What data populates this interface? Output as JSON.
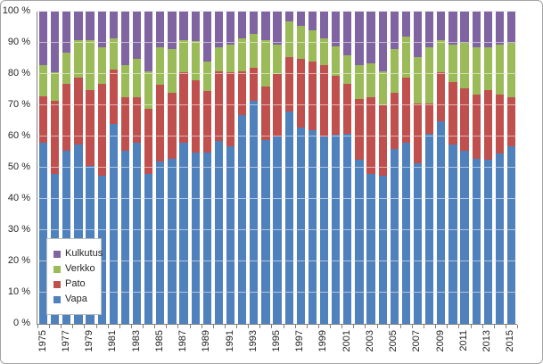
{
  "chart_data": {
    "type": "bar",
    "stacked": true,
    "percent_stacked": true,
    "title": "",
    "xlabel": "",
    "ylabel": "",
    "ylim": [
      0,
      100
    ],
    "grid": true,
    "categories": [
      1975,
      1976,
      1977,
      1978,
      1979,
      1980,
      1981,
      1982,
      1983,
      1984,
      1985,
      1986,
      1987,
      1988,
      1989,
      1990,
      1991,
      1992,
      1993,
      1994,
      1995,
      1996,
      1997,
      1998,
      1999,
      2000,
      2001,
      2002,
      2003,
      2004,
      2005,
      2006,
      2007,
      2008,
      2009,
      2010,
      2011,
      2012,
      2013,
      2014,
      2015
    ],
    "series": [
      {
        "name": "Vapa",
        "color": "#4F81BD",
        "values": [
          58,
          48,
          55.5,
          57.5,
          50.5,
          47.5,
          64,
          55.5,
          58,
          48,
          52,
          53,
          58,
          55,
          55,
          58.5,
          57,
          67,
          71.5,
          59,
          60,
          68,
          63,
          62,
          60,
          60.5,
          61,
          52.5,
          48,
          47.5,
          56,
          58,
          51.5,
          61,
          65,
          57.5,
          55.5,
          53,
          52.5,
          54.5,
          57
        ]
      },
      {
        "name": "Pato",
        "color": "#C0504D",
        "values": [
          15,
          23.5,
          21.5,
          21.5,
          24.5,
          29.5,
          17.5,
          17,
          14.5,
          21,
          24.5,
          21,
          22.5,
          23,
          19.5,
          22.5,
          23.5,
          14,
          10.5,
          17,
          20,
          17.5,
          22,
          22,
          23,
          19,
          16,
          19.5,
          24.5,
          22.5,
          18,
          21,
          19,
          9.5,
          15.5,
          20,
          20,
          20.5,
          22.5,
          19,
          15.5
        ]
      },
      {
        "name": "Verkko",
        "color": "#9BBB59",
        "values": [
          10,
          9,
          10,
          12,
          16,
          11.5,
          10,
          10.5,
          12.5,
          12,
          12,
          14,
          10.5,
          12.5,
          9.5,
          7.5,
          9,
          10.5,
          11,
          15,
          9.5,
          11.5,
          10.5,
          10,
          8.5,
          9.5,
          9,
          11,
          11,
          11,
          14,
          13,
          15,
          18,
          10.5,
          12,
          14.5,
          15,
          13.5,
          16,
          17.5
        ]
      },
      {
        "name": "Kulkutus",
        "color": "#8064A2",
        "values": [
          17,
          19.5,
          13,
          9,
          9,
          11.5,
          8.5,
          17,
          15,
          19,
          11.5,
          12,
          9,
          9.5,
          16,
          11.5,
          10.5,
          8.5,
          7,
          9,
          10.5,
          3,
          4.5,
          6,
          8.5,
          11,
          14,
          17,
          16.5,
          19,
          12,
          8,
          14.5,
          11.5,
          9,
          10.5,
          10,
          11.5,
          11.5,
          10.5,
          10
        ]
      }
    ],
    "y_ticks": [
      "0 %",
      "10 %",
      "20 %",
      "30 %",
      "40 %",
      "50 %",
      "60 %",
      "70 %",
      "80 %",
      "90 %",
      "100 %"
    ],
    "x_tick_labels": [
      "1975",
      "1977",
      "1979",
      "1981",
      "1983",
      "1985",
      "1987",
      "1989",
      "1991",
      "1993",
      "1995",
      "1997",
      "1999",
      "2001",
      "2003",
      "2005",
      "2007",
      "2009",
      "2011",
      "2013",
      "2015"
    ],
    "legend": {
      "position": "inside-bottom-left",
      "entries": [
        {
          "label": "Kulkutus",
          "color": "#8064A2"
        },
        {
          "label": "Verkko",
          "color": "#9BBB59"
        },
        {
          "label": "Pato",
          "color": "#C0504D"
        },
        {
          "label": "Vapa",
          "color": "#4F81BD"
        }
      ]
    }
  },
  "colors": {
    "gridline": "#d9d9d9",
    "axis": "#808080",
    "text": "#262626",
    "background": "#ffffff",
    "figure_border": "#a3a3a3"
  }
}
